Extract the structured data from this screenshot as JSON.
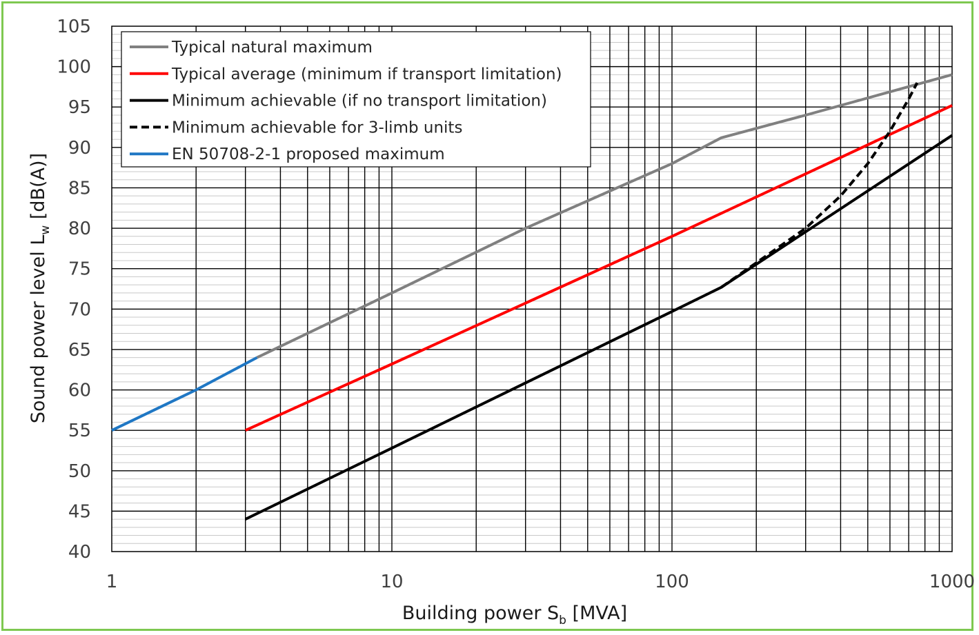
{
  "chart_data": {
    "type": "line",
    "xscale": "log",
    "xlim": [
      1,
      1000
    ],
    "ylim": [
      40,
      105
    ],
    "x_ticks": [
      "1",
      "10",
      "100",
      "1000"
    ],
    "y_ticks": [
      "40",
      "45",
      "50",
      "55",
      "60",
      "65",
      "70",
      "75",
      "80",
      "85",
      "90",
      "95",
      "100",
      "105"
    ],
    "xlabel_main": "Building power S",
    "xlabel_sub": "b",
    "xlabel_unit": " [MVA]",
    "ylabel_main": "Sound power level L",
    "ylabel_sub": "w",
    "ylabel_unit": " [dB(A)]",
    "grid": true,
    "legend_position": "top-left",
    "series": [
      {
        "name": "Typical natural maximum",
        "color": "#808080",
        "dash": false,
        "points": [
          [
            3.3,
            64
          ],
          [
            10,
            72
          ],
          [
            30,
            80
          ],
          [
            100,
            88
          ],
          [
            150,
            91.2
          ],
          [
            300,
            94
          ],
          [
            1000,
            99
          ]
        ]
      },
      {
        "name": "Typical average (minimum if transport limitation)",
        "color": "#ff0000",
        "dash": false,
        "points": [
          [
            3,
            55
          ],
          [
            10,
            63.2
          ],
          [
            100,
            79
          ],
          [
            1000,
            95.2
          ]
        ]
      },
      {
        "name": "Minimum achievable (if no transport limitation)",
        "color": "#000000",
        "dash": false,
        "points": [
          [
            3,
            44
          ],
          [
            10,
            52.8
          ],
          [
            100,
            69.7
          ],
          [
            150,
            72.7
          ],
          [
            1000,
            91.5
          ]
        ]
      },
      {
        "name": "Minimum achievable for 3-limb units",
        "color": "#000000",
        "dash": true,
        "points": [
          [
            150,
            72.7
          ],
          [
            300,
            80
          ],
          [
            400,
            84
          ],
          [
            500,
            88
          ],
          [
            600,
            92
          ],
          [
            700,
            96
          ],
          [
            750,
            98
          ]
        ]
      },
      {
        "name": "EN 50708-2-1 proposed maximum",
        "color": "#1f77c4",
        "dash": false,
        "points": [
          [
            1,
            55
          ],
          [
            2,
            60
          ],
          [
            3.3,
            64
          ]
        ]
      }
    ]
  }
}
